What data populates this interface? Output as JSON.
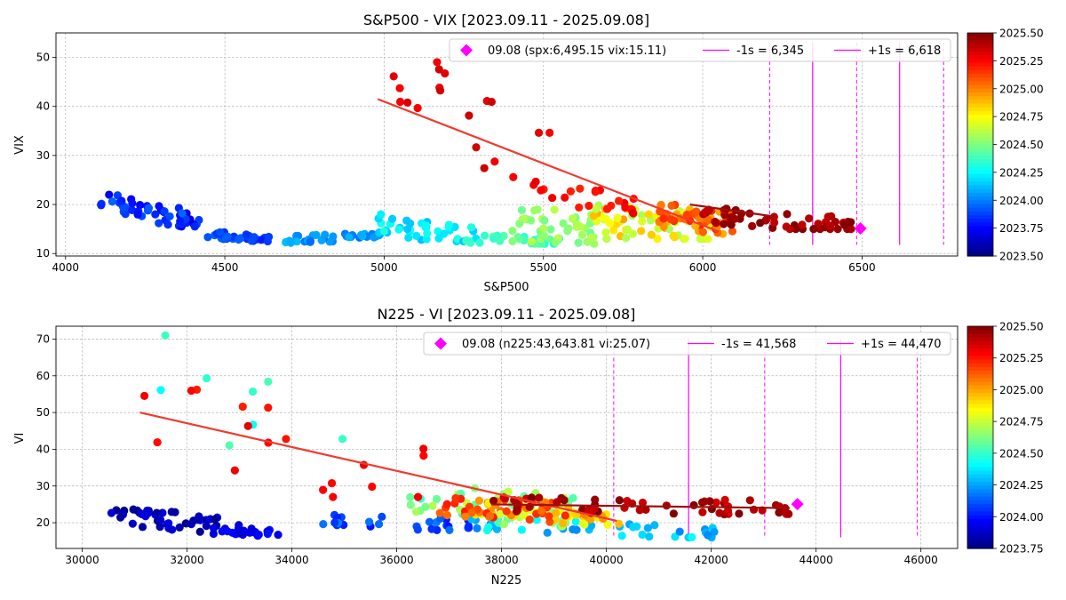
{
  "chart_data": [
    {
      "type": "scatter",
      "title": "S&P500 - VIX [2023.09.11 - 2025.09.08]",
      "xlabel": "S&P500",
      "ylabel": "VIX",
      "xlim": [
        3970,
        6800
      ],
      "ylim": [
        9.5,
        55
      ],
      "xticks": [
        4000,
        4500,
        5000,
        5500,
        6000,
        6500
      ],
      "yticks": [
        10,
        20,
        30,
        40,
        50
      ],
      "grid": true,
      "color_scale": "jet",
      "colorbar": {
        "min": 2023.5,
        "max": 2025.5,
        "ticks": [
          "2023.50",
          "2023.75",
          "2024.00",
          "2024.25",
          "2024.50",
          "2024.75",
          "2025.00",
          "2025.25",
          "2025.50"
        ]
      },
      "legend": {
        "placement": "top-right",
        "current": "09.08 (spx:6,495.15 vix:15.11)",
        "minus": "-1s = 6,345",
        "plus": "+1s = 6,618"
      },
      "current_point": {
        "x": 6495.15,
        "y": 15.11,
        "color": "#ff00ff"
      },
      "vlines_solid": [
        6345,
        6618
      ],
      "vlines_dashed": [
        6210,
        6483,
        6756
      ],
      "vline_ymax": 53,
      "trend_lines": [
        {
          "x": [
            4980,
            6050
          ],
          "y": [
            41.5,
            14.5
          ],
          "color": "#ef3a2e"
        },
        {
          "x": [
            5960,
            6230
          ],
          "y": [
            20,
            17.5
          ],
          "color": "#9b1010"
        }
      ],
      "clusters": [
        {
          "t0": 2023.69,
          "t1": 2023.95,
          "x": [
            4110,
            4420
          ],
          "y": [
            15.5,
            22
          ],
          "n": 50,
          "trend": [
            21,
            16
          ]
        },
        {
          "t0": 2023.8,
          "t1": 2023.95,
          "x": [
            4420,
            4640
          ],
          "y": [
            12.5,
            14.5
          ],
          "n": 30,
          "trend": [
            14,
            13
          ]
        },
        {
          "t0": 2023.95,
          "t1": 2024.12,
          "x": [
            4690,
            4990
          ],
          "y": [
            12,
            14.5
          ],
          "n": 40,
          "trend": [
            13,
            13.5
          ]
        },
        {
          "t0": 2024.12,
          "t1": 2024.32,
          "x": [
            4980,
            5300
          ],
          "y": [
            12.5,
            19
          ],
          "n": 40,
          "trend": [
            16,
            13
          ]
        },
        {
          "t0": 2024.3,
          "t1": 2024.48,
          "x": [
            5250,
            5550
          ],
          "y": [
            12,
            15
          ],
          "n": 30,
          "trend": [
            13,
            12.5
          ]
        },
        {
          "t0": 2024.42,
          "t1": 2024.62,
          "x": [
            5400,
            5680
          ],
          "y": [
            12,
            22
          ],
          "n": 45,
          "trend": [
            16,
            15
          ]
        },
        {
          "t0": 2024.58,
          "t1": 2024.95,
          "x": [
            5650,
            6050
          ],
          "y": [
            13,
            24
          ],
          "n": 60,
          "trend": [
            17,
            15
          ]
        },
        {
          "t0": 2024.9,
          "t1": 2025.2,
          "x": [
            5850,
            6100
          ],
          "y": [
            14,
            21
          ],
          "n": 45,
          "trend": [
            18,
            16
          ]
        },
        {
          "t0": 2025.18,
          "t1": 2025.3,
          "x": [
            5500,
            5800
          ],
          "y": [
            18,
            25
          ],
          "n": 20,
          "trend": [
            23,
            19
          ]
        },
        {
          "t0": 2025.25,
          "t1": 2025.35,
          "x": [
            5000,
            5600
          ],
          "y": [
            21,
            53
          ],
          "n": 22,
          "trend": [
            45,
            22
          ]
        },
        {
          "t0": 2025.36,
          "t1": 2025.5,
          "x": [
            6000,
            6480
          ],
          "y": [
            15,
            20
          ],
          "n": 55,
          "trend": [
            18,
            15.5
          ]
        }
      ]
    },
    {
      "type": "scatter",
      "title": "N225 - VI [2023.09.11 - 2025.09.08]",
      "xlabel": "N225",
      "ylabel": "VI",
      "xlim": [
        29500,
        46700
      ],
      "ylim": [
        13,
        73.5
      ],
      "xticks": [
        30000,
        32000,
        34000,
        36000,
        38000,
        40000,
        42000,
        44000,
        46000
      ],
      "yticks": [
        20,
        30,
        40,
        50,
        60,
        70
      ],
      "grid": true,
      "color_scale": "jet",
      "colorbar": {
        "min": 2023.75,
        "max": 2025.5,
        "ticks": [
          "2023.75",
          "2024.00",
          "2024.25",
          "2024.50",
          "2024.75",
          "2025.00",
          "2025.25",
          "2025.50"
        ]
      },
      "legend": {
        "placement": "top-right",
        "current": "09.08 (n225:43,643.81 vi:25.07)",
        "minus": "-1s = 41,568",
        "plus": "+1s = 44,470"
      },
      "current_point": {
        "x": 43643.81,
        "y": 25.07,
        "color": "#ff00ff"
      },
      "vlines_solid": [
        41568,
        44470
      ],
      "vlines_dashed": [
        40140,
        43020,
        45930
      ],
      "vline_ymax": 70,
      "trend_lines": [
        {
          "x": [
            31100,
            40200
          ],
          "y": [
            50,
            20.5
          ],
          "color": "#ef3a2e"
        },
        {
          "x": [
            37800,
            43500
          ],
          "y": [
            25,
            24
          ],
          "color": "#9b1010"
        }
      ],
      "clusters": [
        {
          "t0": 2023.75,
          "t1": 2023.95,
          "x": [
            30500,
            33000
          ],
          "y": [
            17,
            24
          ],
          "n": 45,
          "trend": [
            22,
            19
          ]
        },
        {
          "t0": 2023.88,
          "t1": 2024.0,
          "x": [
            32500,
            33800
          ],
          "y": [
            16,
            19
          ],
          "n": 25,
          "trend": [
            18,
            17
          ]
        },
        {
          "t0": 2024.0,
          "t1": 2024.2,
          "x": [
            34400,
            37800
          ],
          "y": [
            18,
            23
          ],
          "n": 30,
          "trend": [
            21,
            19
          ]
        },
        {
          "t0": 2024.2,
          "t1": 2024.45,
          "x": [
            37200,
            42200
          ],
          "y": [
            16,
            21
          ],
          "n": 40,
          "trend": [
            20,
            17
          ]
        },
        {
          "t0": 2024.4,
          "t1": 2024.55,
          "x": [
            31400,
            35200
          ],
          "y": [
            35,
            71
          ],
          "n": 8,
          "trend": [
            60,
            40
          ]
        },
        {
          "t0": 2024.5,
          "t1": 2024.75,
          "x": [
            36200,
            39600
          ],
          "y": [
            19,
            33
          ],
          "n": 45,
          "trend": [
            27,
            22
          ]
        },
        {
          "t0": 2024.75,
          "t1": 2025.1,
          "x": [
            37500,
            40300
          ],
          "y": [
            19,
            26
          ],
          "n": 55,
          "trend": [
            24,
            21
          ]
        },
        {
          "t0": 2025.05,
          "t1": 2025.25,
          "x": [
            36800,
            39600
          ],
          "y": [
            20,
            28
          ],
          "n": 40,
          "trend": [
            25,
            22
          ]
        },
        {
          "t0": 2025.22,
          "t1": 2025.32,
          "x": [
            31000,
            36800
          ],
          "y": [
            27,
            59
          ],
          "n": 18,
          "trend": [
            50,
            30
          ]
        },
        {
          "t0": 2025.35,
          "t1": 2025.5,
          "x": [
            37800,
            43500
          ],
          "y": [
            22,
            28
          ],
          "n": 55,
          "trend": [
            25,
            24
          ]
        }
      ]
    }
  ]
}
